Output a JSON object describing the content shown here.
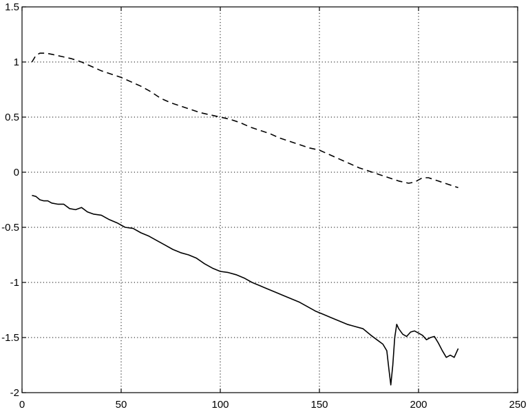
{
  "chart_data": {
    "type": "line",
    "title": "",
    "xlabel": "",
    "ylabel": "",
    "xlim": [
      0,
      250
    ],
    "ylim": [
      -2,
      1.5
    ],
    "xticks": [
      0,
      50,
      100,
      150,
      200,
      250
    ],
    "yticks": [
      -2,
      -1.5,
      -1,
      -0.5,
      0,
      0.5,
      1,
      1.5
    ],
    "xtick_labels": [
      "0",
      "50",
      "100",
      "150",
      "200",
      "250"
    ],
    "ytick_labels": [
      "-2",
      "-1.5",
      "-1",
      "-0.5",
      "0",
      "0.5",
      "1",
      "1.5"
    ],
    "grid": true,
    "series": [
      {
        "style": "dashed",
        "color": "#000000",
        "x": [
          5,
          7,
          9,
          12,
          15,
          20,
          25,
          30,
          35,
          40,
          45,
          50,
          55,
          60,
          65,
          70,
          75,
          80,
          85,
          90,
          95,
          100,
          105,
          110,
          115,
          120,
          125,
          130,
          135,
          140,
          145,
          150,
          155,
          160,
          165,
          170,
          175,
          180,
          185,
          190,
          195,
          198,
          200,
          202,
          205,
          210,
          215,
          220
        ],
        "y": [
          1.0,
          1.06,
          1.08,
          1.08,
          1.07,
          1.05,
          1.03,
          1.0,
          0.96,
          0.92,
          0.89,
          0.86,
          0.82,
          0.78,
          0.73,
          0.67,
          0.63,
          0.6,
          0.57,
          0.54,
          0.52,
          0.5,
          0.48,
          0.45,
          0.41,
          0.38,
          0.35,
          0.31,
          0.28,
          0.25,
          0.22,
          0.2,
          0.16,
          0.12,
          0.08,
          0.04,
          0.01,
          -0.02,
          -0.05,
          -0.08,
          -0.1,
          -0.09,
          -0.07,
          -0.05,
          -0.05,
          -0.08,
          -0.11,
          -0.14
        ]
      },
      {
        "style": "solid",
        "color": "#000000",
        "x": [
          5,
          7,
          9,
          11,
          13,
          15,
          18,
          21,
          24,
          27,
          30,
          33,
          36,
          40,
          44,
          48,
          52,
          56,
          60,
          64,
          68,
          72,
          76,
          80,
          84,
          88,
          92,
          96,
          100,
          104,
          108,
          112,
          116,
          120,
          124,
          128,
          132,
          136,
          140,
          144,
          148,
          152,
          156,
          160,
          164,
          168,
          172,
          176,
          179,
          182,
          184,
          185,
          186,
          187,
          188,
          189,
          190,
          192,
          194,
          196,
          198,
          200,
          202,
          204,
          206,
          208,
          210,
          212,
          214,
          216,
          218,
          220
        ],
        "y": [
          -0.21,
          -0.22,
          -0.25,
          -0.26,
          -0.26,
          -0.28,
          -0.29,
          -0.29,
          -0.33,
          -0.34,
          -0.32,
          -0.36,
          -0.38,
          -0.39,
          -0.43,
          -0.46,
          -0.5,
          -0.51,
          -0.55,
          -0.58,
          -0.62,
          -0.66,
          -0.7,
          -0.73,
          -0.75,
          -0.78,
          -0.83,
          -0.87,
          -0.9,
          -0.91,
          -0.93,
          -0.96,
          -1.0,
          -1.03,
          -1.06,
          -1.09,
          -1.12,
          -1.15,
          -1.18,
          -1.22,
          -1.26,
          -1.29,
          -1.32,
          -1.35,
          -1.38,
          -1.4,
          -1.42,
          -1.48,
          -1.52,
          -1.56,
          -1.62,
          -1.78,
          -1.93,
          -1.75,
          -1.5,
          -1.38,
          -1.42,
          -1.47,
          -1.49,
          -1.45,
          -1.44,
          -1.46,
          -1.48,
          -1.52,
          -1.5,
          -1.49,
          -1.55,
          -1.62,
          -1.68,
          -1.66,
          -1.68,
          -1.6
        ]
      }
    ]
  }
}
